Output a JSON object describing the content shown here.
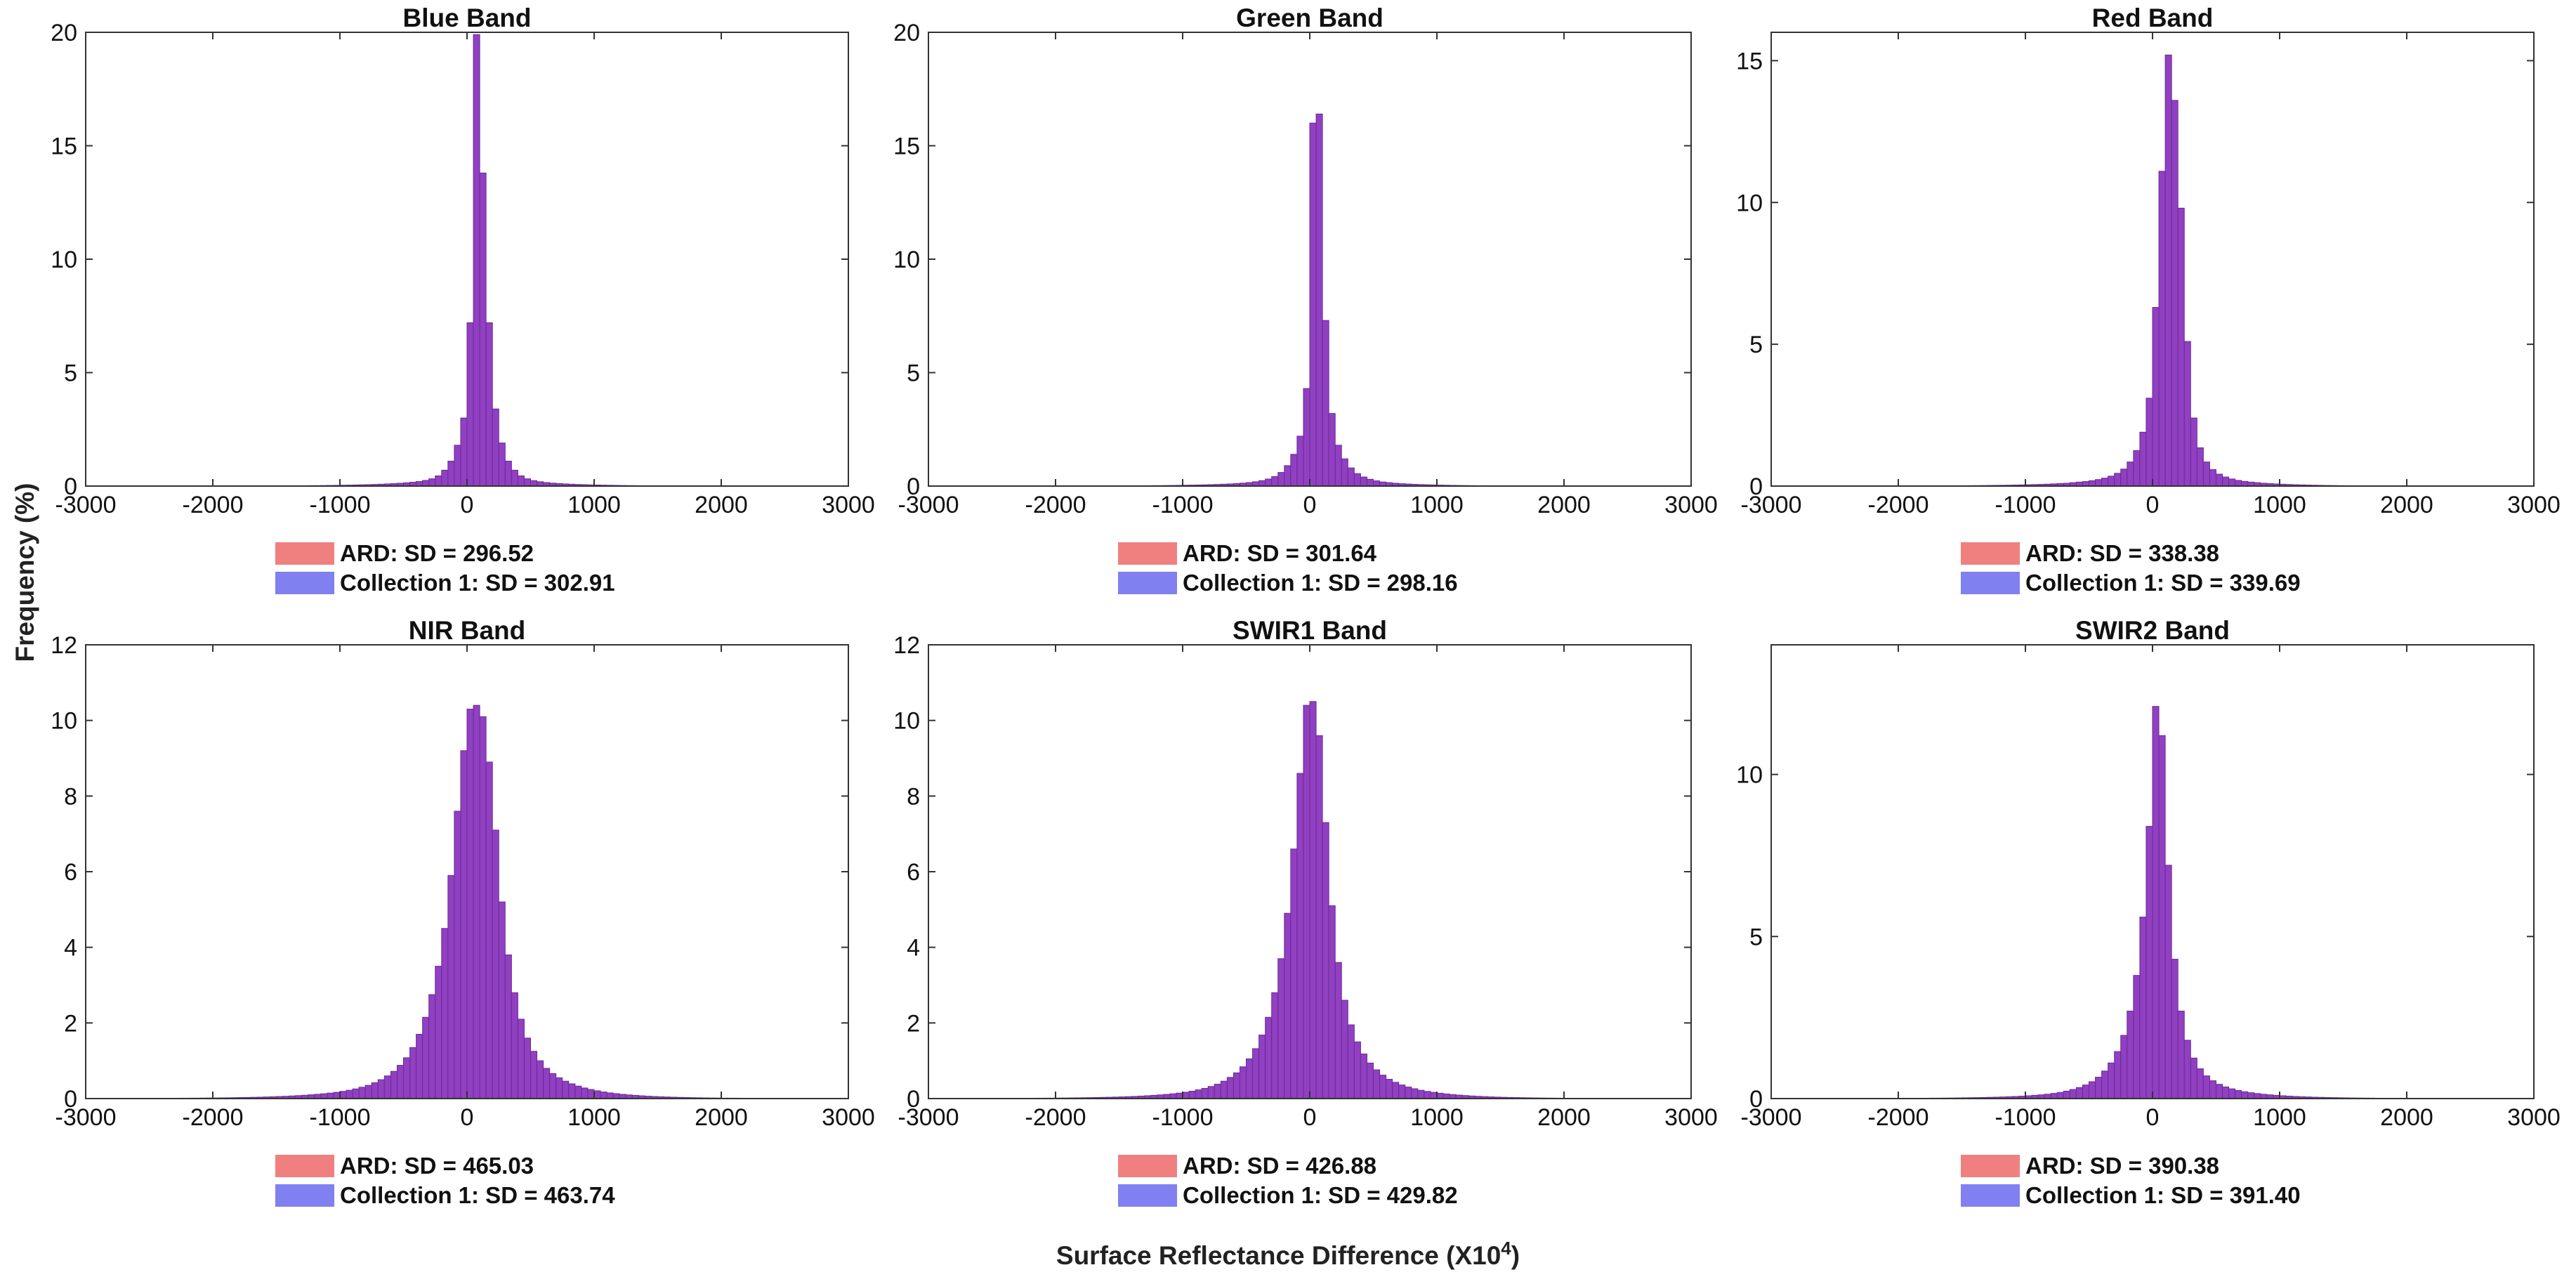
{
  "figure": {
    "ylabel": "Frequency (%)",
    "xlabel_text": "Surface Reflectance Difference (X10",
    "xlabel_exponent": "4",
    "xlabel_close": ")"
  },
  "colors": {
    "ard": "#f08080",
    "collection1": "#8080f0",
    "overlap": "#9040c0",
    "bar_edge": "#6a2a9a"
  },
  "chart_data": [
    {
      "type": "bar",
      "title": "Blue Band",
      "xlim": [
        -3000,
        3000
      ],
      "xticks": [
        -3000,
        -2000,
        -1000,
        0,
        1000,
        2000,
        3000
      ],
      "ylim": [
        0,
        20
      ],
      "yticks": [
        0,
        5,
        10,
        15,
        20
      ],
      "bin_start": -2500,
      "bin_width": 50,
      "values": [
        0.001,
        0.001,
        0.001,
        0.001,
        0.001,
        0.002,
        0.002,
        0.002,
        0.002,
        0.002,
        0.003,
        0.003,
        0.003,
        0.004,
        0.004,
        0.005,
        0.005,
        0.006,
        0.007,
        0.008,
        0.009,
        0.011,
        0.012,
        0.014,
        0.016,
        0.019,
        0.021,
        0.024,
        0.028,
        0.032,
        0.037,
        0.042,
        0.048,
        0.055,
        0.063,
        0.072,
        0.083,
        0.095,
        0.11,
        0.125,
        0.145,
        0.17,
        0.2,
        0.25,
        0.32,
        0.45,
        0.7,
        1.1,
        1.8,
        3.0,
        7.2,
        19.9,
        13.8,
        7.2,
        3.4,
        1.9,
        1.1,
        0.7,
        0.45,
        0.32,
        0.24,
        0.19,
        0.155,
        0.13,
        0.11,
        0.095,
        0.082,
        0.07,
        0.061,
        0.053,
        0.046,
        0.04,
        0.035,
        0.03,
        0.026,
        0.022,
        0.019,
        0.016,
        0.014,
        0.012,
        0.01,
        0.009,
        0.008,
        0.007,
        0.006,
        0.005,
        0.004,
        0.004,
        0.003,
        0.003,
        0.003,
        0.002,
        0.002,
        0.002,
        0.002,
        0.001,
        0.001,
        0.001,
        0.001,
        0.001
      ],
      "series": [
        {
          "name": "ARD",
          "legend": "ARD:  SD = 296.52"
        },
        {
          "name": "Collection 1",
          "legend": "Collection 1:  SD = 302.91"
        }
      ]
    },
    {
      "type": "bar",
      "title": "Green Band",
      "xlim": [
        -3000,
        3000
      ],
      "xticks": [
        -3000,
        -2000,
        -1000,
        0,
        1000,
        2000,
        3000
      ],
      "ylim": [
        0,
        20
      ],
      "yticks": [
        0,
        5,
        10,
        15,
        20
      ],
      "bin_start": -2500,
      "bin_width": 50,
      "values": [
        0.001,
        0.001,
        0.001,
        0.001,
        0.001,
        0.002,
        0.002,
        0.002,
        0.002,
        0.002,
        0.003,
        0.003,
        0.003,
        0.004,
        0.004,
        0.005,
        0.005,
        0.006,
        0.007,
        0.008,
        0.009,
        0.011,
        0.012,
        0.014,
        0.016,
        0.019,
        0.021,
        0.024,
        0.028,
        0.032,
        0.037,
        0.042,
        0.048,
        0.055,
        0.063,
        0.072,
        0.083,
        0.095,
        0.11,
        0.13,
        0.155,
        0.19,
        0.24,
        0.31,
        0.42,
        0.6,
        0.9,
        1.4,
        2.2,
        4.3,
        16.0,
        16.4,
        7.3,
        3.2,
        1.8,
        1.2,
        0.8,
        0.55,
        0.4,
        0.3,
        0.23,
        0.18,
        0.15,
        0.125,
        0.105,
        0.09,
        0.077,
        0.066,
        0.057,
        0.049,
        0.042,
        0.036,
        0.031,
        0.027,
        0.023,
        0.02,
        0.017,
        0.015,
        0.013,
        0.011,
        0.01,
        0.009,
        0.008,
        0.007,
        0.006,
        0.005,
        0.004,
        0.004,
        0.003,
        0.003,
        0.003,
        0.002,
        0.002,
        0.002,
        0.002,
        0.001,
        0.001,
        0.001,
        0.001,
        0.001
      ],
      "series": [
        {
          "name": "ARD",
          "legend": "ARD:  SD = 301.64"
        },
        {
          "name": "Collection 1",
          "legend": "Collection 1:  SD = 298.16"
        }
      ]
    },
    {
      "type": "bar",
      "title": "Red Band",
      "xlim": [
        -3000,
        3000
      ],
      "xticks": [
        -3000,
        -2000,
        -1000,
        0,
        1000,
        2000,
        3000
      ],
      "ylim": [
        0,
        16
      ],
      "yticks": [
        0,
        5,
        10,
        15
      ],
      "bin_start": -2500,
      "bin_width": 50,
      "values": [
        0.001,
        0.001,
        0.001,
        0.002,
        0.002,
        0.002,
        0.002,
        0.003,
        0.003,
        0.003,
        0.004,
        0.004,
        0.005,
        0.005,
        0.006,
        0.007,
        0.008,
        0.009,
        0.01,
        0.012,
        0.013,
        0.015,
        0.017,
        0.019,
        0.022,
        0.025,
        0.028,
        0.032,
        0.036,
        0.041,
        0.047,
        0.053,
        0.06,
        0.068,
        0.078,
        0.09,
        0.1,
        0.12,
        0.14,
        0.16,
        0.19,
        0.23,
        0.28,
        0.35,
        0.45,
        0.6,
        0.85,
        1.25,
        1.9,
        3.1,
        6.3,
        11.1,
        15.2,
        13.6,
        9.8,
        5.1,
        2.4,
        1.35,
        0.85,
        0.58,
        0.42,
        0.32,
        0.25,
        0.2,
        0.165,
        0.14,
        0.12,
        0.1,
        0.087,
        0.075,
        0.065,
        0.056,
        0.048,
        0.041,
        0.035,
        0.03,
        0.026,
        0.022,
        0.019,
        0.016,
        0.014,
        0.012,
        0.01,
        0.009,
        0.008,
        0.007,
        0.006,
        0.005,
        0.004,
        0.004,
        0.003,
        0.003,
        0.003,
        0.002,
        0.002,
        0.002,
        0.001,
        0.001,
        0.001,
        0.001
      ],
      "series": [
        {
          "name": "ARD",
          "legend": "ARD:  SD = 338.38"
        },
        {
          "name": "Collection 1",
          "legend": "Collection 1:  SD = 339.69"
        }
      ]
    },
    {
      "type": "bar",
      "title": "NIR Band",
      "xlim": [
        -3000,
        3000
      ],
      "xticks": [
        -3000,
        -2000,
        -1000,
        0,
        1000,
        2000,
        3000
      ],
      "ylim": [
        0,
        12
      ],
      "yticks": [
        0,
        2,
        4,
        6,
        8,
        10,
        12
      ],
      "bin_start": -2500,
      "bin_width": 50,
      "values": [
        0.005,
        0.006,
        0.007,
        0.008,
        0.009,
        0.01,
        0.011,
        0.012,
        0.014,
        0.015,
        0.017,
        0.019,
        0.021,
        0.024,
        0.027,
        0.03,
        0.034,
        0.038,
        0.043,
        0.048,
        0.054,
        0.061,
        0.069,
        0.078,
        0.088,
        0.1,
        0.113,
        0.128,
        0.145,
        0.165,
        0.19,
        0.22,
        0.255,
        0.3,
        0.35,
        0.42,
        0.5,
        0.6,
        0.72,
        0.88,
        1.08,
        1.35,
        1.7,
        2.15,
        2.75,
        3.5,
        4.5,
        5.9,
        7.6,
        9.2,
        10.3,
        10.4,
        10.1,
        8.9,
        7.1,
        5.2,
        3.8,
        2.8,
        2.1,
        1.6,
        1.25,
        1.0,
        0.8,
        0.66,
        0.55,
        0.46,
        0.39,
        0.33,
        0.28,
        0.24,
        0.205,
        0.175,
        0.15,
        0.13,
        0.112,
        0.097,
        0.084,
        0.073,
        0.063,
        0.055,
        0.048,
        0.042,
        0.037,
        0.032,
        0.028,
        0.024,
        0.021,
        0.018,
        0.016,
        0.014,
        0.012,
        0.011,
        0.01,
        0.009,
        0.008,
        0.007,
        0.006,
        0.005,
        0.005,
        0.004
      ],
      "series": [
        {
          "name": "ARD",
          "legend": "ARD:  SD = 465.03"
        },
        {
          "name": "Collection 1",
          "legend": "Collection 1:  SD = 463.74"
        }
      ]
    },
    {
      "type": "bar",
      "title": "SWIR1 Band",
      "xlim": [
        -3000,
        3000
      ],
      "xticks": [
        -3000,
        -2000,
        -1000,
        0,
        1000,
        2000,
        3000
      ],
      "ylim": [
        0,
        12
      ],
      "yticks": [
        0,
        2,
        4,
        6,
        8,
        10,
        12
      ],
      "bin_start": -2500,
      "bin_width": 50,
      "values": [
        0.004,
        0.005,
        0.006,
        0.006,
        0.007,
        0.008,
        0.009,
        0.01,
        0.011,
        0.012,
        0.014,
        0.016,
        0.018,
        0.02,
        0.022,
        0.025,
        0.028,
        0.032,
        0.036,
        0.04,
        0.045,
        0.051,
        0.058,
        0.066,
        0.075,
        0.085,
        0.097,
        0.11,
        0.126,
        0.145,
        0.168,
        0.195,
        0.23,
        0.27,
        0.32,
        0.38,
        0.46,
        0.56,
        0.68,
        0.84,
        1.05,
        1.32,
        1.68,
        2.15,
        2.8,
        3.7,
        4.9,
        6.6,
        8.6,
        10.4,
        10.5,
        9.6,
        7.3,
        5.1,
        3.6,
        2.6,
        1.95,
        1.5,
        1.18,
        0.94,
        0.76,
        0.62,
        0.51,
        0.43,
        0.36,
        0.305,
        0.26,
        0.22,
        0.19,
        0.165,
        0.142,
        0.123,
        0.106,
        0.092,
        0.08,
        0.069,
        0.06,
        0.052,
        0.045,
        0.039,
        0.034,
        0.03,
        0.026,
        0.023,
        0.02,
        0.017,
        0.015,
        0.013,
        0.012,
        0.01,
        0.009,
        0.008,
        0.007,
        0.006,
        0.006,
        0.005,
        0.004,
        0.004,
        0.004,
        0.003
      ],
      "series": [
        {
          "name": "ARD",
          "legend": "ARD:  SD = 426.88"
        },
        {
          "name": "Collection 1",
          "legend": "Collection 1:  SD = 429.82"
        }
      ]
    },
    {
      "type": "bar",
      "title": "SWIR2 Band",
      "xlim": [
        -3000,
        3000
      ],
      "xticks": [
        -3000,
        -2000,
        -1000,
        0,
        1000,
        2000,
        3000
      ],
      "ylim": [
        0,
        14
      ],
      "yticks": [
        0,
        5,
        10
      ],
      "bin_start": -2500,
      "bin_width": 50,
      "values": [
        0.002,
        0.002,
        0.003,
        0.003,
        0.003,
        0.004,
        0.004,
        0.005,
        0.005,
        0.006,
        0.007,
        0.008,
        0.009,
        0.01,
        0.011,
        0.013,
        0.014,
        0.016,
        0.018,
        0.021,
        0.024,
        0.027,
        0.03,
        0.034,
        0.039,
        0.044,
        0.05,
        0.057,
        0.065,
        0.075,
        0.086,
        0.1,
        0.115,
        0.135,
        0.16,
        0.19,
        0.23,
        0.28,
        0.34,
        0.42,
        0.52,
        0.66,
        0.85,
        1.1,
        1.45,
        1.95,
        2.7,
        3.8,
        5.6,
        8.4,
        12.1,
        11.2,
        7.2,
        4.3,
        2.7,
        1.8,
        1.25,
        0.92,
        0.7,
        0.55,
        0.44,
        0.36,
        0.3,
        0.25,
        0.21,
        0.18,
        0.155,
        0.133,
        0.115,
        0.1,
        0.087,
        0.075,
        0.065,
        0.057,
        0.05,
        0.043,
        0.038,
        0.033,
        0.029,
        0.025,
        0.022,
        0.019,
        0.017,
        0.015,
        0.013,
        0.011,
        0.01,
        0.009,
        0.008,
        0.007,
        0.006,
        0.005,
        0.005,
        0.004,
        0.004,
        0.003,
        0.003,
        0.003,
        0.002,
        0.002
      ],
      "series": [
        {
          "name": "ARD",
          "legend": "ARD:  SD = 390.38"
        },
        {
          "name": "Collection 1",
          "legend": "Collection 1:  SD = 391.40"
        }
      ]
    }
  ]
}
